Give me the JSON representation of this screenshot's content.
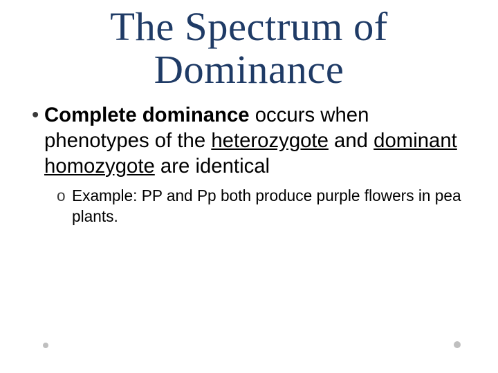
{
  "title": {
    "line1": "The Spectrum of",
    "line2": "Dominance",
    "color": "#1f3b66",
    "fontsize_pt": 44
  },
  "bullet": {
    "marker": "•",
    "marker_color": "#3a3a3a",
    "fontsize_pt": 22,
    "text_color": "#000000",
    "segments": {
      "s1_bold": "Complete dominance",
      "s2": " occurs when phenotypes of the ",
      "s3_ul": "heterozygote",
      "s4": " and ",
      "s5_ul": "dominant homozygote",
      "s6": " are identical"
    }
  },
  "sub": {
    "marker": "o",
    "marker_color": "#3a3a3a",
    "fontsize_pt": 17,
    "text_color": "#000000",
    "text": "Example:  PP and Pp both produce purple flowers in pea plants."
  },
  "decor": {
    "dot_color": "#bfbfbf"
  }
}
